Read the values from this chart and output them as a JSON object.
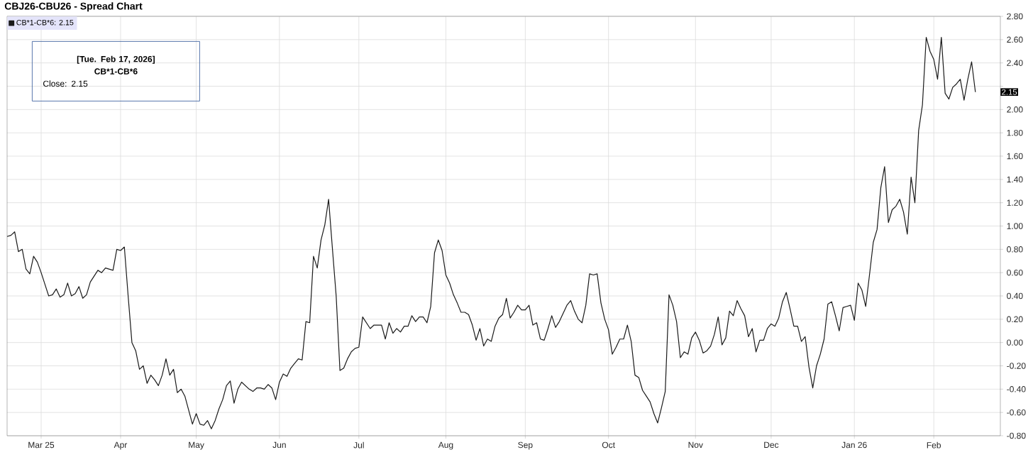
{
  "chart_data": {
    "type": "line",
    "title": "CBJ26-CBU26 - Spread Chart",
    "series": [
      {
        "name": "CB*1-CB*6: 2.15",
        "color": "#1a1a1a",
        "values": [
          0.91,
          0.92,
          0.95,
          0.78,
          0.8,
          0.63,
          0.59,
          0.74,
          0.69,
          0.6,
          0.5,
          0.4,
          0.41,
          0.46,
          0.39,
          0.41,
          0.51,
          0.4,
          0.42,
          0.48,
          0.38,
          0.41,
          0.52,
          0.57,
          0.62,
          0.6,
          0.64,
          0.63,
          0.62,
          0.8,
          0.79,
          0.82,
          0.4,
          0.0,
          -0.07,
          -0.23,
          -0.2,
          -0.35,
          -0.28,
          -0.32,
          -0.37,
          -0.28,
          -0.14,
          -0.28,
          -0.23,
          -0.43,
          -0.4,
          -0.46,
          -0.58,
          -0.7,
          -0.61,
          -0.7,
          -0.71,
          -0.67,
          -0.74,
          -0.67,
          -0.57,
          -0.49,
          -0.37,
          -0.33,
          -0.52,
          -0.4,
          -0.34,
          -0.37,
          -0.4,
          -0.42,
          -0.39,
          -0.39,
          -0.4,
          -0.36,
          -0.39,
          -0.49,
          -0.34,
          -0.27,
          -0.29,
          -0.22,
          -0.18,
          -0.14,
          -0.15,
          0.18,
          0.17,
          0.74,
          0.64,
          0.88,
          1.01,
          1.23,
          0.81,
          0.4,
          -0.24,
          -0.22,
          -0.14,
          -0.08,
          -0.05,
          -0.04,
          0.22,
          0.17,
          0.12,
          0.15,
          0.15,
          0.15,
          0.03,
          0.17,
          0.08,
          0.12,
          0.09,
          0.14,
          0.14,
          0.23,
          0.18,
          0.22,
          0.22,
          0.17,
          0.31,
          0.77,
          0.88,
          0.79,
          0.58,
          0.51,
          0.41,
          0.34,
          0.26,
          0.26,
          0.24,
          0.15,
          0.02,
          0.12,
          -0.03,
          0.03,
          0.01,
          0.14,
          0.21,
          0.24,
          0.38,
          0.21,
          0.26,
          0.32,
          0.28,
          0.28,
          0.32,
          0.15,
          0.17,
          0.03,
          0.02,
          0.12,
          0.23,
          0.13,
          0.18,
          0.25,
          0.32,
          0.36,
          0.27,
          0.2,
          0.17,
          0.32,
          0.59,
          0.58,
          0.59,
          0.34,
          0.2,
          0.11,
          -0.1,
          -0.04,
          0.03,
          0.03,
          0.15,
          0.01,
          -0.28,
          -0.3,
          -0.41,
          -0.46,
          -0.51,
          -0.61,
          -0.69,
          -0.56,
          -0.42,
          0.41,
          0.32,
          0.18,
          -0.13,
          -0.08,
          -0.1,
          0.04,
          0.09,
          0.02,
          -0.09,
          -0.07,
          -0.03,
          0.07,
          0.22,
          -0.02,
          0.04,
          0.27,
          0.23,
          0.36,
          0.29,
          0.23,
          0.05,
          0.12,
          -0.08,
          0.02,
          0.02,
          0.12,
          0.16,
          0.14,
          0.21,
          0.35,
          0.43,
          0.29,
          0.14,
          0.14,
          0.01,
          0.05,
          -0.21,
          -0.39,
          -0.2,
          -0.1,
          0.03,
          0.33,
          0.35,
          0.23,
          0.1,
          0.3,
          0.31,
          0.32,
          0.19,
          0.51,
          0.45,
          0.31,
          0.58,
          0.86,
          0.97,
          1.33,
          1.51,
          1.03,
          1.14,
          1.17,
          1.23,
          1.12,
          0.93,
          1.42,
          1.2,
          1.82,
          2.04,
          2.62,
          2.5,
          2.43,
          2.26,
          2.62,
          2.14,
          2.09,
          2.19,
          2.22,
          2.26,
          2.08,
          2.26,
          2.41,
          2.15
        ]
      }
    ],
    "categories": [
      null,
      null,
      null,
      null,
      null,
      null,
      null,
      null,
      null,
      "Mar 25",
      null,
      null,
      null,
      null,
      null,
      null,
      null,
      null,
      null,
      null,
      null,
      null,
      null,
      null,
      null,
      null,
      null,
      null,
      null,
      null,
      "Apr",
      null,
      null,
      null,
      null,
      null,
      null,
      null,
      null,
      null,
      null,
      null,
      null,
      null,
      null,
      null,
      null,
      null,
      null,
      null,
      "May",
      null,
      null,
      null,
      null,
      null,
      null,
      null,
      null,
      null,
      null,
      null,
      null,
      null,
      null,
      null,
      null,
      null,
      null,
      null,
      null,
      null,
      "Jun",
      null,
      null,
      null,
      null,
      null,
      null,
      null,
      null,
      null,
      null,
      null,
      null,
      null,
      null,
      null,
      null,
      null,
      null,
      null,
      null,
      "Jul",
      null,
      null,
      null,
      null,
      null,
      null,
      null,
      null,
      null,
      null,
      null,
      null,
      null,
      null,
      null,
      null,
      null,
      null,
      null,
      null,
      null,
      null,
      "Aug",
      null,
      null,
      null,
      null,
      null,
      null,
      null,
      null,
      null,
      null,
      null,
      null,
      null,
      null,
      null,
      null,
      null,
      null,
      null,
      null,
      "Sep",
      null,
      null,
      null,
      null,
      null,
      null,
      null,
      null,
      null,
      null,
      null,
      null,
      null,
      null,
      null,
      null,
      null,
      null,
      null,
      null,
      null,
      "Oct",
      null,
      null,
      null,
      null,
      null,
      null,
      null,
      null,
      null,
      null,
      null,
      null,
      null,
      null,
      null,
      null,
      null,
      null,
      null,
      null,
      null,
      null,
      "Nov",
      null,
      null,
      null,
      null,
      null,
      null,
      null,
      null,
      null,
      null,
      null,
      null,
      null,
      null,
      null,
      null,
      null,
      null,
      null,
      "Dec",
      null,
      null,
      null,
      null,
      null,
      null,
      null,
      null,
      null,
      null,
      null,
      null,
      null,
      null,
      null,
      null,
      null,
      null,
      null,
      null,
      null,
      "Jan 26",
      null,
      null,
      null,
      null,
      null,
      null,
      null,
      null,
      null,
      null,
      null,
      null,
      null,
      null,
      null,
      null,
      null,
      null,
      null,
      null,
      "Feb",
      null,
      null,
      null,
      null,
      null,
      null,
      null,
      null,
      null,
      null,
      null
    ],
    "ylim": [
      -0.8,
      2.8
    ],
    "yticks": [
      {
        "value": -0.8,
        "label": "-0.80"
      },
      {
        "value": -0.6,
        "label": "-0.60"
      },
      {
        "value": -0.4,
        "label": "-0.40"
      },
      {
        "value": -0.2,
        "label": "-0.20"
      },
      {
        "value": 0,
        "label": "0.00"
      },
      {
        "value": 0.2,
        "label": "0.20"
      },
      {
        "value": 0.4,
        "label": "0.40"
      },
      {
        "value": 0.6,
        "label": "0.60"
      },
      {
        "value": 0.8,
        "label": "0.80"
      },
      {
        "value": 1.0,
        "label": "1.00"
      },
      {
        "value": 1.2,
        "label": "1.20"
      },
      {
        "value": 1.4,
        "label": "1.40"
      },
      {
        "value": 1.6,
        "label": "1.60"
      },
      {
        "value": 1.8,
        "label": "1.80"
      },
      {
        "value": 2.0,
        "label": "2.00"
      },
      {
        "value": 2.2,
        "label": null
      },
      {
        "value": 2.4,
        "label": "2.40"
      },
      {
        "value": 2.6,
        "label": "2.60"
      },
      {
        "value": 2.8,
        "label": "2.80"
      }
    ],
    "grid": true,
    "legend": "top left",
    "marker": "none",
    "line_style": "solid",
    "annotations": [
      "[Tue. Feb 17, 2026]",
      "CB*1-CB*6",
      "Close: 2.15",
      "2.15"
    ]
  }
}
